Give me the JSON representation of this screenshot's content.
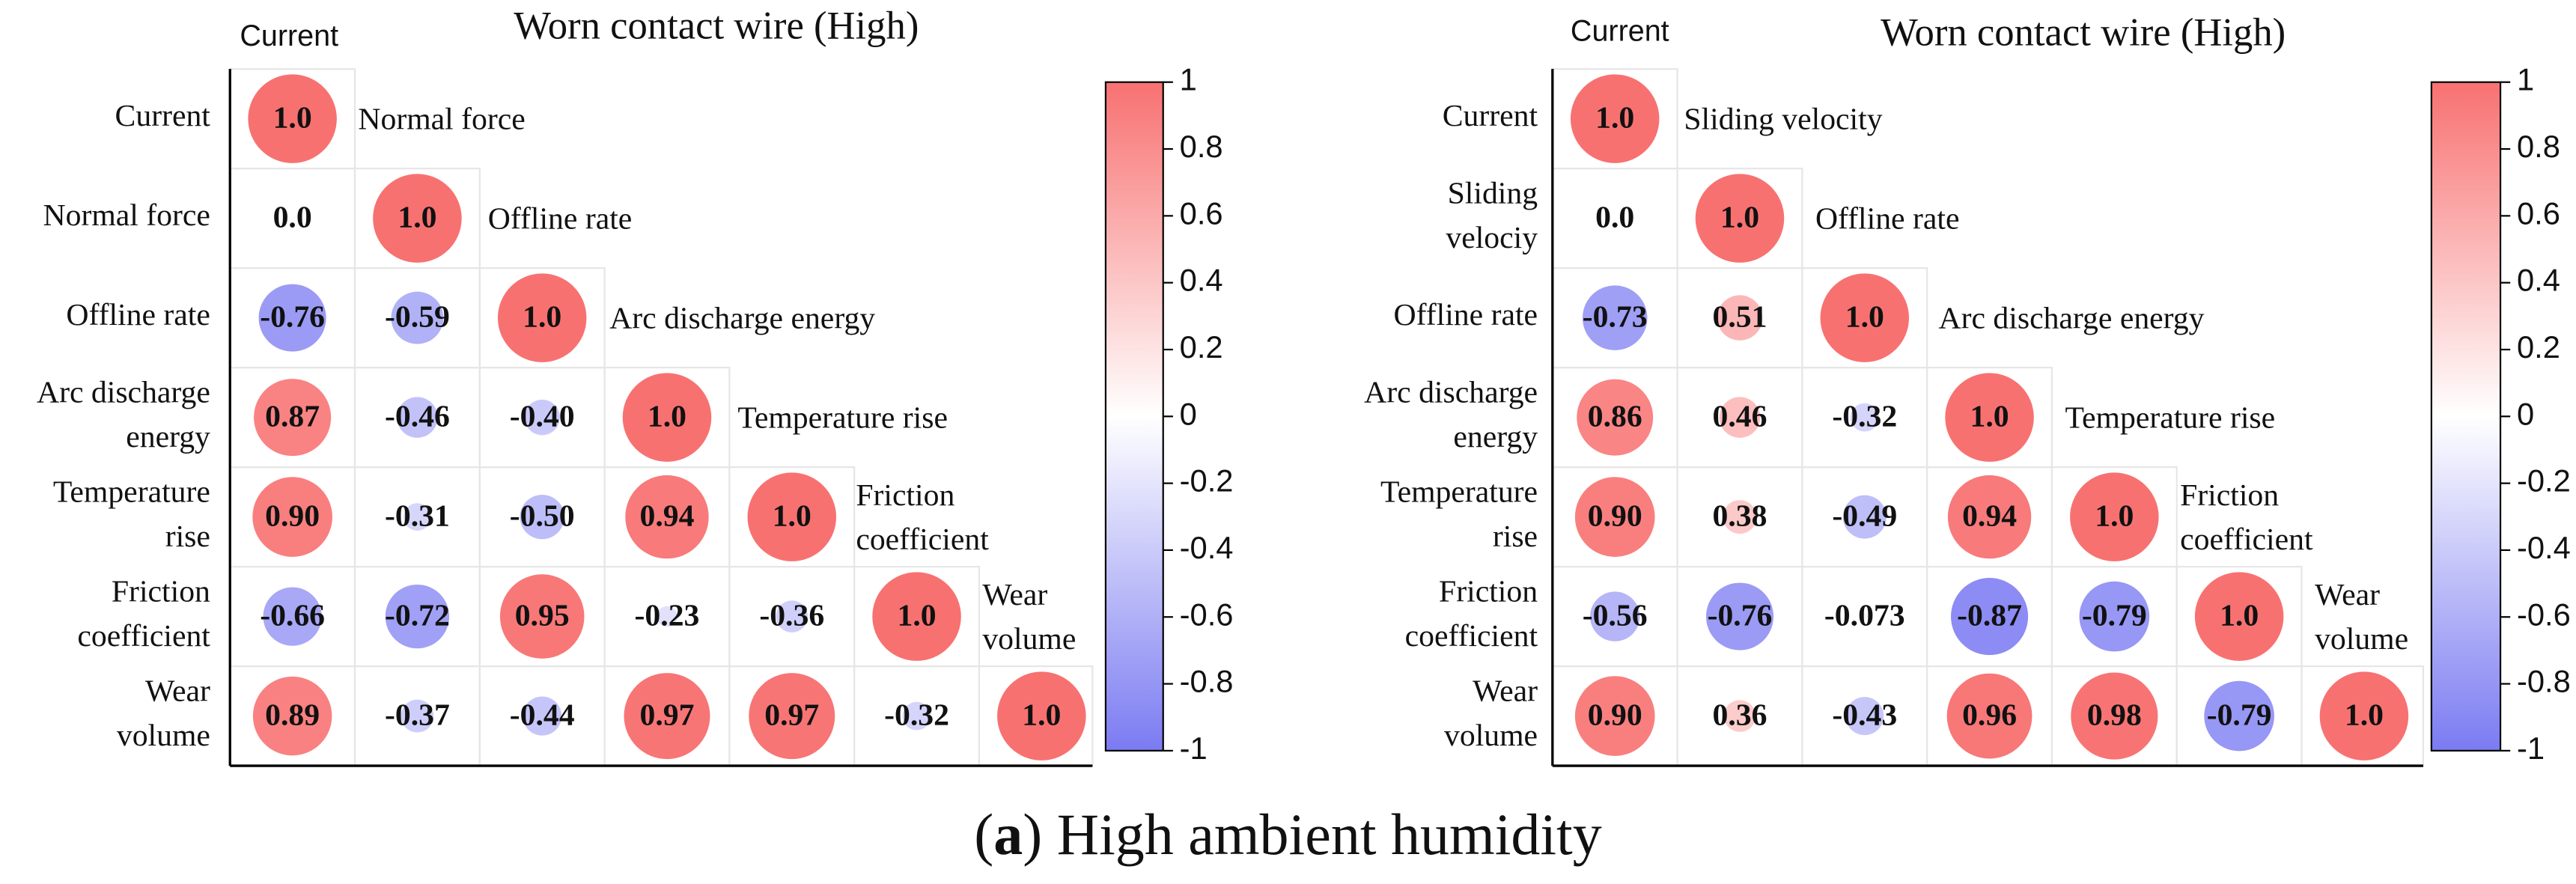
{
  "colors": {
    "positive": "#f87171",
    "negative": "#7b7bf2",
    "neutral": "#ffffff",
    "text": "#111111",
    "grid": "#e6e6e6",
    "axis": "#000000"
  },
  "caption": {
    "label": "a",
    "text": " High ambient humidity"
  },
  "chart_data": [
    {
      "type": "heatmap",
      "title": "Worn contact wire (High)",
      "variables": [
        "Current",
        "Normal force",
        "Offline rate",
        "Arc discharge energy",
        "Temperature rise",
        "Friction coefficient",
        "Wear volume"
      ],
      "row_labels": [
        [
          "Current"
        ],
        [
          "Normal force"
        ],
        [
          "Offline rate"
        ],
        [
          "Arc discharge",
          "energy"
        ],
        [
          "Temperature",
          "rise"
        ],
        [
          "Friction",
          "coefficient"
        ],
        [
          "Wear",
          "volume"
        ]
      ],
      "diag_labels": [
        [
          "Current"
        ],
        [
          "Normal force"
        ],
        [
          "Offline rate"
        ],
        [
          "Arc discharge energy"
        ],
        [
          "Temperature rise"
        ],
        [
          "Friction",
          "coefficient"
        ],
        [
          "Wear",
          "volume"
        ]
      ],
      "lower_triangle": [
        [
          "1.0"
        ],
        [
          "0.0",
          "1.0"
        ],
        [
          "-0.76",
          "-0.59",
          "1.0"
        ],
        [
          "0.87",
          "-0.46",
          "-0.40",
          "1.0"
        ],
        [
          "0.90",
          "-0.31",
          "-0.50",
          "0.94",
          "1.0"
        ],
        [
          "-0.66",
          "-0.72",
          "0.95",
          "-0.23",
          "-0.36",
          "1.0"
        ],
        [
          "0.89",
          "-0.37",
          "-0.44",
          "0.97",
          "0.97",
          "-0.32",
          "1.0"
        ]
      ],
      "colorbar": {
        "range": [
          -1,
          1
        ],
        "ticks": [
          "1",
          "0.8",
          "0.6",
          "0.4",
          "0.2",
          "0",
          "-0.2",
          "-0.4",
          "-0.6",
          "-0.8",
          "-1"
        ]
      }
    },
    {
      "type": "heatmap",
      "title": "Worn contact wire (High)",
      "variables": [
        "Current",
        "Sliding velocity",
        "Offline rate",
        "Arc discharge energy",
        "Temperature rise",
        "Friction coefficient",
        "Wear volume"
      ],
      "row_labels": [
        [
          "Current"
        ],
        [
          "Sliding",
          "velociy"
        ],
        [
          "Offline rate"
        ],
        [
          "Arc discharge",
          "energy"
        ],
        [
          "Temperature",
          "rise"
        ],
        [
          "Friction",
          "coefficient"
        ],
        [
          "Wear",
          "volume"
        ]
      ],
      "diag_labels": [
        [
          "Current"
        ],
        [
          "Sliding velocity"
        ],
        [
          "Offline rate"
        ],
        [
          "Arc discharge energy"
        ],
        [
          "Temperature rise"
        ],
        [
          "Friction",
          "coefficient"
        ],
        [
          "Wear",
          "volume"
        ]
      ],
      "lower_triangle": [
        [
          "1.0"
        ],
        [
          "0.0",
          "1.0"
        ],
        [
          "-0.73",
          "0.51",
          "1.0"
        ],
        [
          "0.86",
          "0.46",
          "-0.32",
          "1.0"
        ],
        [
          "0.90",
          "0.38",
          "-0.49",
          "0.94",
          "1.0"
        ],
        [
          "-0.56",
          "-0.76",
          "-0.073",
          "-0.87",
          "-0.79",
          "1.0"
        ],
        [
          "0.90",
          "0.36",
          "-0.43",
          "0.96",
          "0.98",
          "-0.79",
          "1.0"
        ]
      ],
      "colorbar": {
        "range": [
          -1,
          1
        ],
        "ticks": [
          "1",
          "0.8",
          "0.6",
          "0.4",
          "0.2",
          "0",
          "-0.2",
          "-0.4",
          "-0.6",
          "-0.8",
          "-1"
        ]
      }
    }
  ]
}
